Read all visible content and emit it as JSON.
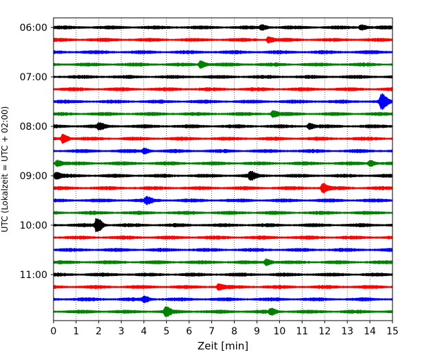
{
  "chart_data": {
    "type": "line",
    "chart_kind": "helicorder",
    "title": "",
    "xlabel": "Zeit  [min]",
    "ylabel": "UTC (Lokalzeit = UTC + 02:00)",
    "xlim": [
      0,
      15
    ],
    "x_ticks": [
      0,
      1,
      2,
      3,
      4,
      5,
      6,
      7,
      8,
      9,
      10,
      11,
      12,
      13,
      14,
      15
    ],
    "x_tick_labels": [
      "0",
      "1",
      "2",
      "3",
      "4",
      "5",
      "6",
      "7",
      "8",
      "9",
      "10",
      "11",
      "12",
      "13",
      "14",
      "15"
    ],
    "x_grid": "dotted vertical lines at each minute",
    "y_tick_labels": [
      {
        "label": "06:00",
        "trace_index": 0
      },
      {
        "label": "07:00",
        "trace_index": 4
      },
      {
        "label": "08:00",
        "trace_index": 8
      },
      {
        "label": "09:00",
        "trace_index": 12
      },
      {
        "label": "10:00",
        "trace_index": 16
      },
      {
        "label": "11:00",
        "trace_index": 20
      }
    ],
    "trace_duration_min": 15,
    "trace_colors": [
      "#000000",
      "#ff0000",
      "#0000ff",
      "#008000"
    ],
    "traces": [
      {
        "start": "06:00",
        "events": [
          {
            "t": 9.2,
            "amp": 0.35
          },
          {
            "t": 13.6,
            "amp": 0.35
          }
        ]
      },
      {
        "start": "06:15",
        "events": [
          {
            "t": 9.5,
            "amp": 0.35
          }
        ]
      },
      {
        "start": "06:30",
        "events": []
      },
      {
        "start": "06:45",
        "events": [
          {
            "t": 6.5,
            "amp": 0.5
          }
        ]
      },
      {
        "start": "07:00",
        "events": []
      },
      {
        "start": "07:15",
        "events": []
      },
      {
        "start": "07:30",
        "events": [
          {
            "t": 14.5,
            "amp": 1.0
          }
        ]
      },
      {
        "start": "07:45",
        "events": [
          {
            "t": 9.7,
            "amp": 0.4
          }
        ]
      },
      {
        "start": "08:00",
        "events": [
          {
            "t": 2.0,
            "amp": 0.4
          },
          {
            "t": 11.3,
            "amp": 0.35
          }
        ]
      },
      {
        "start": "08:15",
        "events": [
          {
            "t": 0.4,
            "amp": 0.6
          }
        ]
      },
      {
        "start": "08:30",
        "events": [
          {
            "t": 4.0,
            "amp": 0.35
          }
        ]
      },
      {
        "start": "08:45",
        "events": [
          {
            "t": 0.15,
            "amp": 0.4
          },
          {
            "t": 14.0,
            "amp": 0.35
          }
        ]
      },
      {
        "start": "09:00",
        "events": [
          {
            "t": 0.1,
            "amp": 0.4
          },
          {
            "t": 8.7,
            "amp": 0.5
          }
        ]
      },
      {
        "start": "09:15",
        "events": [
          {
            "t": 11.9,
            "amp": 0.55
          }
        ]
      },
      {
        "start": "09:30",
        "events": [
          {
            "t": 4.1,
            "amp": 0.4
          }
        ]
      },
      {
        "start": "09:45",
        "events": []
      },
      {
        "start": "10:00",
        "events": [
          {
            "t": 1.9,
            "amp": 1.0
          }
        ]
      },
      {
        "start": "10:15",
        "events": []
      },
      {
        "start": "10:30",
        "events": []
      },
      {
        "start": "10:45",
        "events": [
          {
            "t": 9.4,
            "amp": 0.4
          }
        ]
      },
      {
        "start": "11:00",
        "events": []
      },
      {
        "start": "11:15",
        "events": [
          {
            "t": 7.3,
            "amp": 0.35
          }
        ]
      },
      {
        "start": "11:30",
        "events": [
          {
            "t": 4.0,
            "amp": 0.35
          }
        ]
      },
      {
        "start": "11:45",
        "events": [
          {
            "t": 4.95,
            "amp": 0.6
          },
          {
            "t": 9.6,
            "amp": 0.4
          }
        ]
      }
    ]
  }
}
